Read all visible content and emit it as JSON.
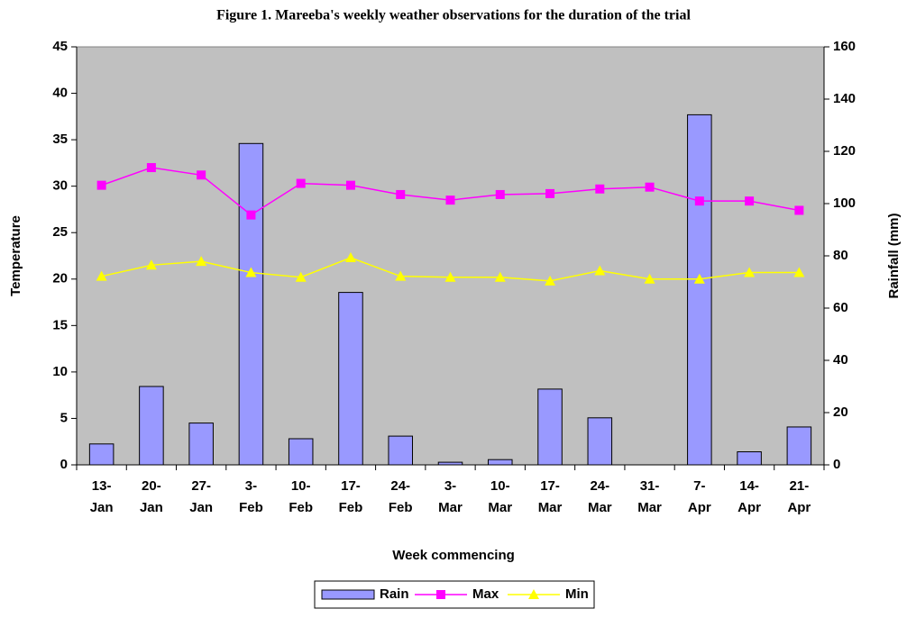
{
  "chart_data": {
    "type": "combo",
    "title": "Figure 1. Mareeba's weekly weather observations for the duration of the trial",
    "x_label": "Week commencing",
    "y_label": "Temperature",
    "y2_label": "Rainfall (mm)",
    "categories": [
      "13-Jan",
      "20-Jan",
      "27-Jan",
      "3-Feb",
      "10-Feb",
      "17-Feb",
      "24-Feb",
      "3-Mar",
      "10-Mar",
      "17-Mar",
      "24-Mar",
      "31-Mar",
      "7-Apr",
      "14-Apr",
      "21-Apr"
    ],
    "series": [
      {
        "name": "Rain",
        "type": "bar",
        "axis": "y2",
        "color": "#9999ff",
        "values": [
          8,
          30,
          16,
          123,
          10,
          66,
          11,
          1,
          2,
          29,
          18,
          0,
          134,
          5,
          14.5
        ]
      },
      {
        "name": "Max",
        "type": "line",
        "marker": "square",
        "color": "#ff00ff",
        "values": [
          30.1,
          32,
          31.2,
          26.9,
          30.3,
          30.1,
          29.1,
          28.5,
          29.1,
          29.2,
          29.7,
          29.9,
          28.4,
          28.4,
          27.4
        ]
      },
      {
        "name": "Min",
        "type": "line",
        "marker": "triangle",
        "color": "#ffff00",
        "values": [
          20.3,
          21.5,
          21.9,
          20.7,
          20.2,
          22.3,
          20.3,
          20.2,
          20.2,
          19.8,
          20.9,
          20.0,
          20.0,
          20.7,
          20.7
        ]
      }
    ],
    "ylim": [
      0,
      45
    ],
    "yticks": [
      0,
      5,
      10,
      15,
      20,
      25,
      30,
      35,
      40,
      45
    ],
    "y2lim": [
      0,
      160
    ],
    "y2ticks": [
      0,
      20,
      40,
      60,
      80,
      100,
      120,
      140,
      160
    ],
    "plot_background": "#c0c0c0",
    "legend": "bottom"
  }
}
